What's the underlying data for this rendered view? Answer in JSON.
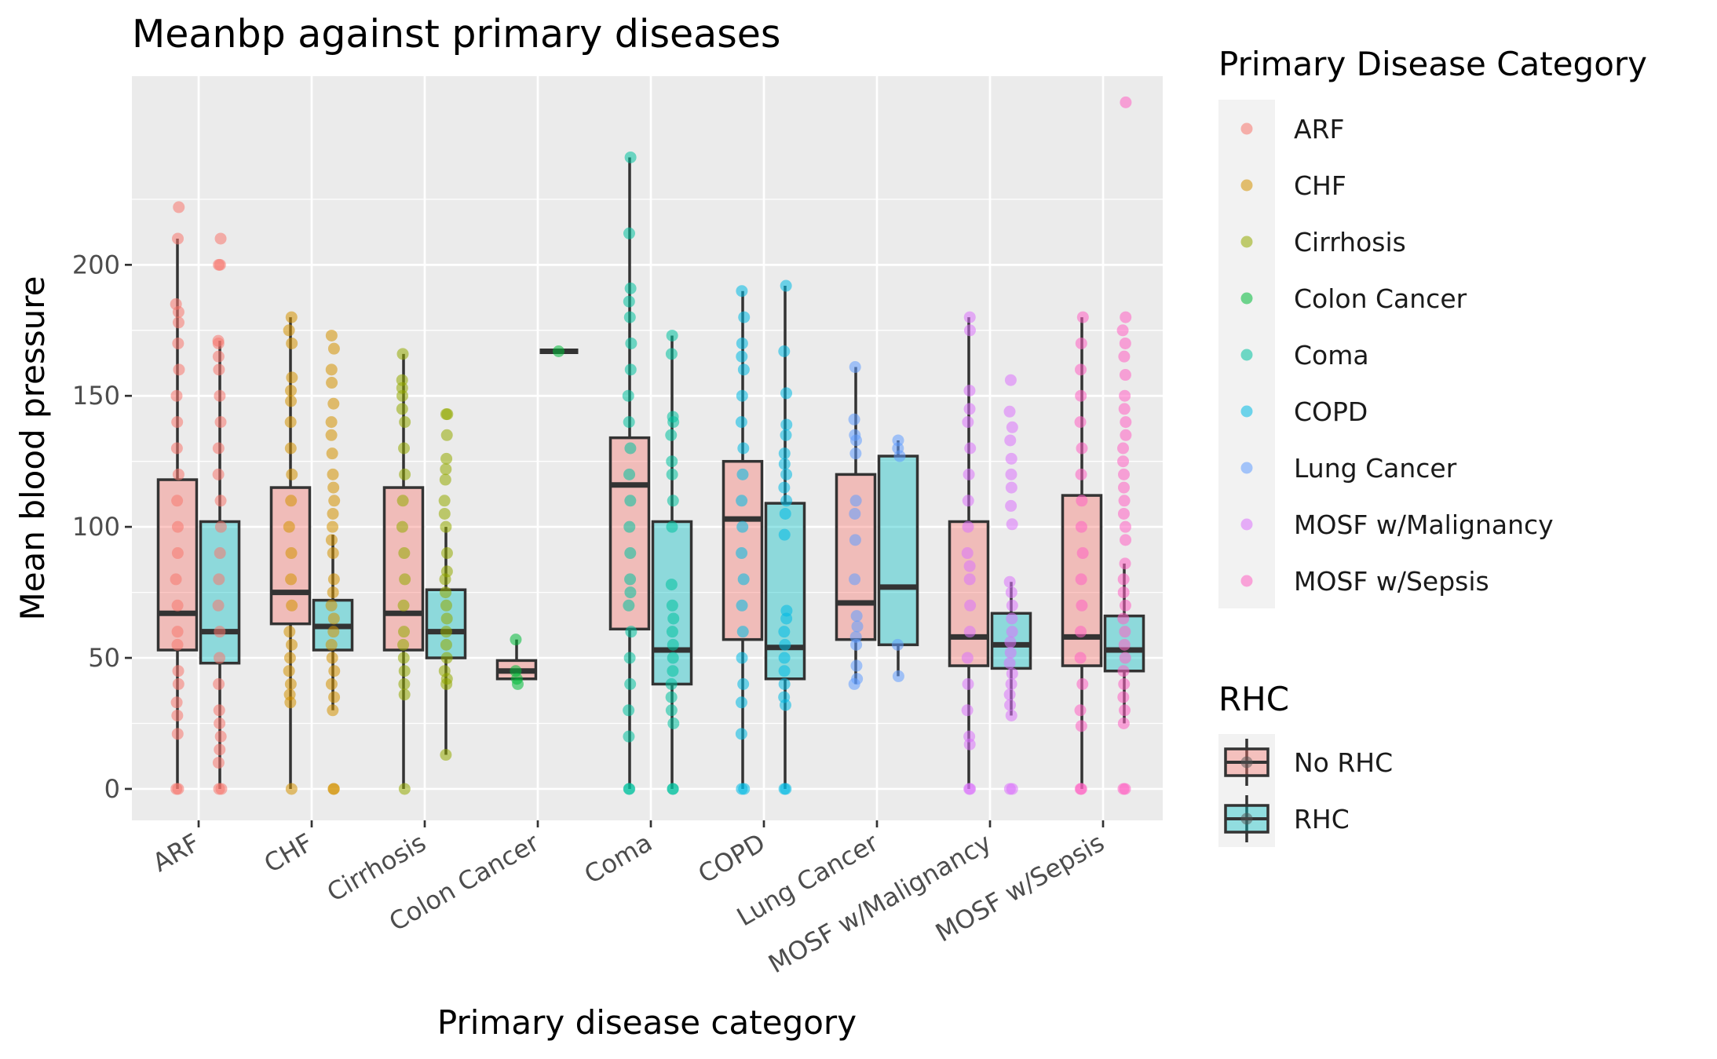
{
  "chart_data": {
    "type": "boxplot",
    "title": "Meanbp against primary diseases",
    "xlabel": "Primary disease category",
    "ylabel": "Mean blood pressure",
    "ylim": [
      -12,
      272
    ],
    "yticks": [
      0,
      50,
      100,
      150,
      200
    ],
    "grid": true,
    "categories": [
      "ARF",
      "CHF",
      "Cirrhosis",
      "Colon Cancer",
      "Coma",
      "COPD",
      "Lung Cancer",
      "MOSF w/Malignancy",
      "MOSF w/Sepsis"
    ],
    "colors": [
      "#F8766D",
      "#D39200",
      "#93AA00",
      "#00BA38",
      "#00C19F",
      "#00B9E3",
      "#619CFF",
      "#DB72FB",
      "#FF61C3"
    ],
    "series": [
      {
        "name": "No RHC",
        "fill": "#F8766D",
        "boxes": [
          {
            "whisker_low": 0,
            "q1": 53,
            "median": 67,
            "q3": 118,
            "whisker_high": 210,
            "points": [
              0,
              0,
              21,
              28,
              33,
              40,
              45,
              55,
              60,
              70,
              80,
              90,
              100,
              110,
              120,
              130,
              140,
              150,
              160,
              170,
              178,
              182,
              185,
              210,
              222
            ]
          },
          {
            "whisker_low": 0,
            "q1": 63,
            "median": 75,
            "q3": 115,
            "whisker_high": 180,
            "points": [
              0,
              33,
              36,
              40,
              45,
              50,
              55,
              60,
              70,
              80,
              90,
              100,
              110,
              120,
              130,
              140,
              148,
              152,
              157,
              170,
              175,
              180
            ]
          },
          {
            "whisker_low": 0,
            "q1": 53,
            "median": 67,
            "q3": 115,
            "whisker_high": 166,
            "points": [
              0,
              36,
              40,
              45,
              50,
              55,
              60,
              70,
              80,
              90,
              100,
              110,
              120,
              130,
              140,
              145,
              150,
              153,
              156,
              166
            ]
          },
          {
            "whisker_low": 42,
            "q1": 42,
            "median": 45,
            "q3": 49,
            "whisker_high": 57,
            "points": [
              40,
              42,
              45,
              57
            ]
          },
          {
            "whisker_low": 0,
            "q1": 61,
            "median": 116,
            "q3": 134,
            "whisker_high": 241,
            "points": [
              0,
              0,
              20,
              30,
              40,
              50,
              60,
              70,
              75,
              80,
              90,
              100,
              110,
              120,
              130,
              140,
              150,
              160,
              170,
              180,
              186,
              191,
              212,
              241
            ]
          },
          {
            "whisker_low": 0,
            "q1": 57,
            "median": 103,
            "q3": 125,
            "whisker_high": 190,
            "points": [
              0,
              0,
              21,
              33,
              40,
              50,
              60,
              70,
              80,
              90,
              100,
              110,
              120,
              130,
              140,
              150,
              160,
              165,
              170,
              180,
              190
            ]
          },
          {
            "whisker_low": 40,
            "q1": 57,
            "median": 71,
            "q3": 120,
            "whisker_high": 161,
            "points": [
              40,
              42,
              47,
              55,
              58,
              62,
              66,
              80,
              95,
              105,
              110,
              128,
              133,
              135,
              141,
              161
            ]
          },
          {
            "whisker_low": 0,
            "q1": 47,
            "median": 58,
            "q3": 102,
            "whisker_high": 180,
            "points": [
              0,
              0,
              17,
              20,
              30,
              40,
              50,
              60,
              70,
              80,
              85,
              90,
              100,
              110,
              120,
              130,
              140,
              145,
              152,
              175,
              180
            ]
          },
          {
            "whisker_low": 0,
            "q1": 47,
            "median": 58,
            "q3": 112,
            "whisker_high": 180,
            "points": [
              0,
              0,
              24,
              30,
              40,
              50,
              60,
              70,
              80,
              90,
              100,
              110,
              120,
              130,
              140,
              150,
              160,
              170,
              180
            ]
          }
        ]
      },
      {
        "name": "RHC",
        "fill": "#00BFC4",
        "boxes": [
          {
            "whisker_low": 0,
            "q1": 48,
            "median": 60,
            "q3": 102,
            "whisker_high": 171,
            "points": [
              0,
              0,
              10,
              15,
              20,
              25,
              30,
              40,
              50,
              60,
              70,
              80,
              90,
              100,
              110,
              120,
              130,
              140,
              150,
              160,
              165,
              170,
              171,
              200,
              200,
              210
            ]
          },
          {
            "whisker_low": 30,
            "q1": 53,
            "median": 62,
            "q3": 72,
            "whisker_high": 97,
            "points": [
              0,
              0,
              30,
              35,
              40,
              45,
              50,
              55,
              60,
              65,
              70,
              75,
              80,
              90,
              95,
              100,
              105,
              110,
              115,
              120,
              128,
              135,
              140,
              147,
              155,
              160,
              168,
              173
            ]
          },
          {
            "whisker_low": 13,
            "q1": 50,
            "median": 60,
            "q3": 76,
            "whisker_high": 100,
            "points": [
              13,
              40,
              42,
              45,
              50,
              55,
              60,
              65,
              70,
              75,
              80,
              83,
              90,
              100,
              105,
              110,
              118,
              122,
              126,
              135,
              143,
              143
            ]
          },
          {
            "whisker_low": 167,
            "q1": 167,
            "median": 167,
            "q3": 167,
            "whisker_high": 167,
            "points": [
              167
            ]
          },
          {
            "whisker_low": 0,
            "q1": 40,
            "median": 53,
            "q3": 102,
            "whisker_high": 173,
            "points": [
              0,
              0,
              25,
              30,
              35,
              40,
              45,
              50,
              55,
              60,
              65,
              70,
              78,
              100,
              110,
              120,
              125,
              135,
              140,
              142,
              166,
              173
            ]
          },
          {
            "whisker_low": 0,
            "q1": 42,
            "median": 54,
            "q3": 109,
            "whisker_high": 192,
            "points": [
              0,
              0,
              32,
              35,
              40,
              45,
              50,
              55,
              60,
              65,
              68,
              97,
              105,
              110,
              115,
              120,
              124,
              128,
              135,
              139,
              151,
              167,
              192
            ]
          },
          {
            "whisker_low": 43,
            "q1": 55,
            "median": 77,
            "q3": 127,
            "whisker_high": 133,
            "points": [
              43,
              55,
              127,
              130,
              133
            ]
          },
          {
            "whisker_low": 28,
            "q1": 46,
            "median": 55,
            "q3": 67,
            "whisker_high": 79,
            "points": [
              0,
              0,
              28,
              32,
              36,
              40,
              44,
              48,
              52,
              56,
              60,
              65,
              70,
              75,
              79,
              101,
              108,
              115,
              120,
              126,
              133,
              138,
              144,
              156
            ]
          },
          {
            "whisker_low": 25,
            "q1": 45,
            "median": 53,
            "q3": 66,
            "whisker_high": 86,
            "points": [
              0,
              0,
              25,
              30,
              35,
              40,
              45,
              50,
              55,
              60,
              65,
              70,
              75,
              80,
              86,
              95,
              100,
              105,
              110,
              115,
              120,
              125,
              130,
              135,
              140,
              145,
              150,
              158,
              165,
              170,
              175,
              180,
              262
            ]
          }
        ]
      }
    ],
    "legends": [
      {
        "title": "Primary Disease Category",
        "items": [
          "ARF",
          "CHF",
          "Cirrhosis",
          "Colon Cancer",
          "Coma",
          "COPD",
          "Lung Cancer",
          "MOSF w/Malignancy",
          "MOSF w/Sepsis"
        ]
      },
      {
        "title": "RHC",
        "items": [
          "No RHC",
          "RHC"
        ]
      }
    ],
    "legend_position": "right"
  }
}
